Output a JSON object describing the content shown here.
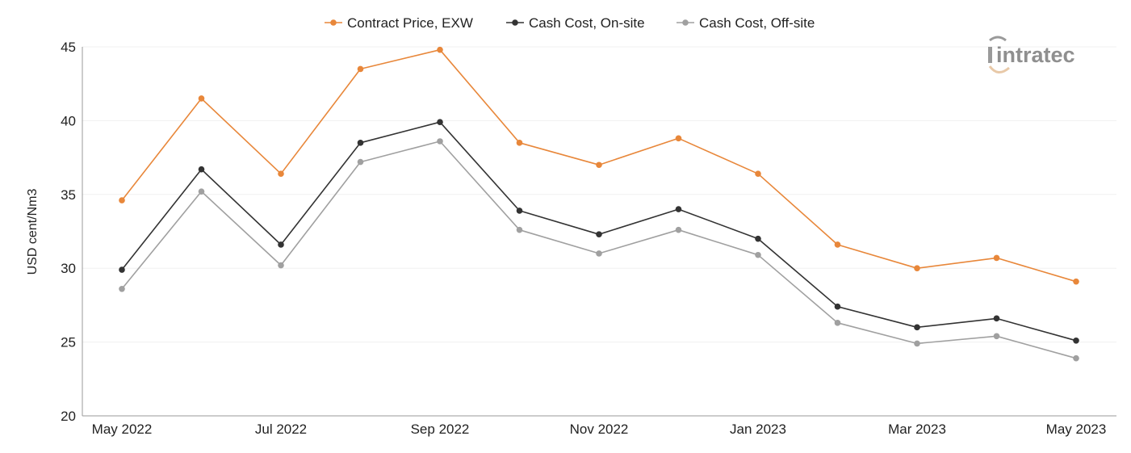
{
  "logo": {
    "text": "intratec",
    "icon": "intratec-logo-icon"
  },
  "chart_data": {
    "type": "line",
    "ylabel": "USD cent/Nm3",
    "xlabel": "",
    "ylim": [
      20,
      45
    ],
    "yticks": [
      20,
      25,
      30,
      35,
      40,
      45
    ],
    "x": [
      "May 2022",
      "Jun 2022",
      "Jul 2022",
      "Aug 2022",
      "Sep 2022",
      "Oct 2022",
      "Nov 2022",
      "Dec 2022",
      "Jan 2023",
      "Feb 2023",
      "Mar 2023",
      "Apr 2023",
      "May 2023"
    ],
    "xtick_labels": [
      "May 2022",
      "",
      "Jul 2022",
      "",
      "Sep 2022",
      "",
      "Nov 2022",
      "",
      "Jan 2023",
      "",
      "Mar 2023",
      "",
      "May 2023"
    ],
    "grid": "horizontal",
    "legend": "top-center",
    "series": [
      {
        "name": "Contract Price, EXW",
        "color": "#e8873a",
        "values": [
          34.6,
          41.5,
          36.4,
          43.5,
          44.8,
          38.5,
          37.0,
          38.8,
          36.4,
          31.6,
          30.0,
          30.7,
          29.1
        ]
      },
      {
        "name": "Cash Cost, On-site",
        "color": "#333333",
        "values": [
          29.9,
          36.7,
          31.6,
          38.5,
          39.9,
          33.9,
          32.3,
          34.0,
          32.0,
          27.4,
          26.0,
          26.6,
          25.1
        ]
      },
      {
        "name": "Cash Cost, Off-site",
        "color": "#a0a0a0",
        "values": [
          28.6,
          35.2,
          30.2,
          37.2,
          38.6,
          32.6,
          31.0,
          32.6,
          30.9,
          26.3,
          24.9,
          25.4,
          23.9
        ]
      }
    ]
  }
}
